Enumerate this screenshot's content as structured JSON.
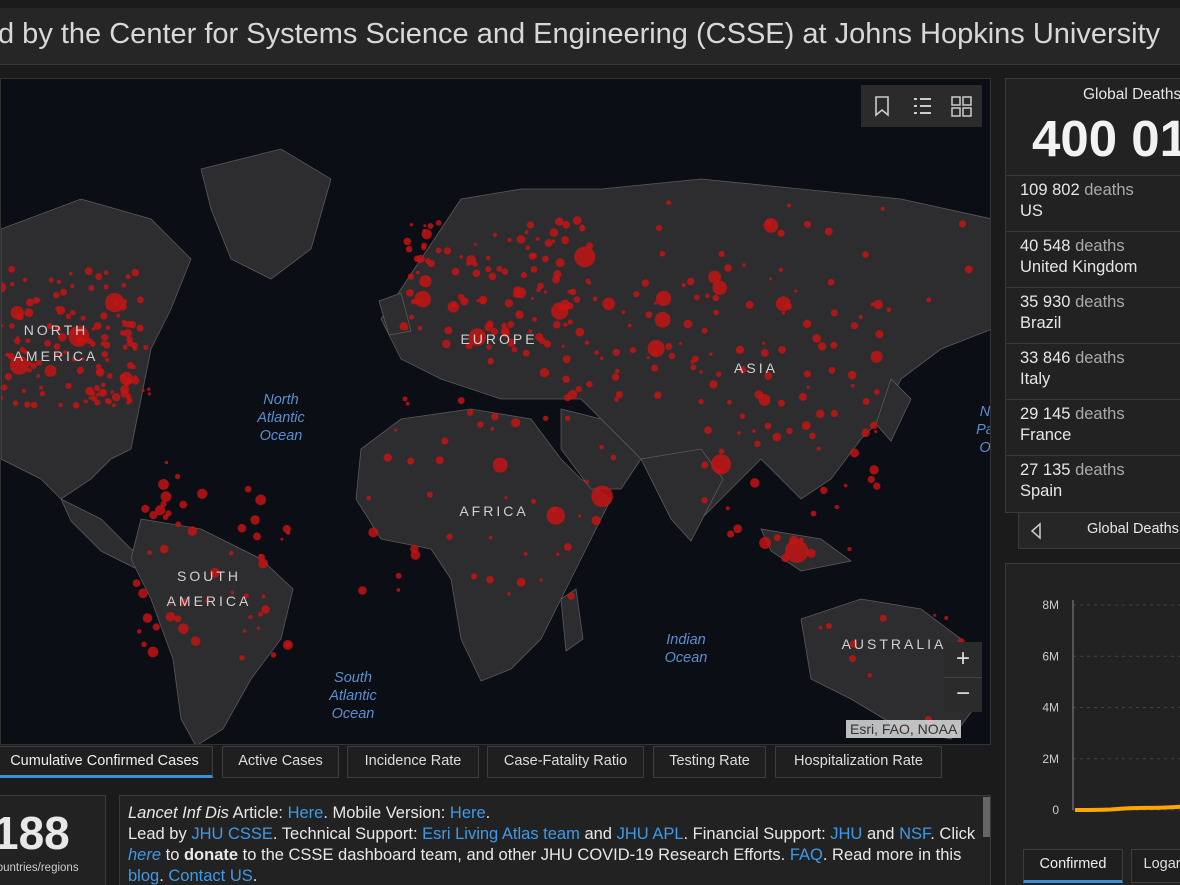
{
  "header": {
    "title": "d by the Center for Systems Science and Engineering (CSSE) at Johns Hopkins University"
  },
  "map": {
    "continent_labels": [
      {
        "lines": [
          "NORTH",
          "AMERICA"
        ]
      },
      {
        "lines": [
          "EUROPE"
        ]
      },
      {
        "lines": [
          "ASIA"
        ]
      },
      {
        "lines": [
          "AFRICA"
        ]
      },
      {
        "lines": [
          "SOUTH",
          "AMERICA"
        ]
      },
      {
        "lines": [
          "AUSTRALIA"
        ]
      }
    ],
    "ocean_labels": [
      {
        "lines": [
          "North",
          "Atlantic",
          "Ocean"
        ]
      },
      {
        "lines": [
          "South",
          "Atlantic",
          "Ocean"
        ]
      },
      {
        "lines": [
          "Indian",
          "Ocean"
        ]
      },
      {
        "lines": [
          "N",
          "Pa",
          "O"
        ]
      }
    ],
    "zoom": {
      "in": "+",
      "out": "−"
    },
    "attribution": "Esri, FAO, NOAA"
  },
  "map_tabs": [
    "Cumulative Confirmed Cases",
    "Active Cases",
    "Incidence Rate",
    "Case-Fatality Ratio",
    "Testing Rate",
    "Hospitalization Rate"
  ],
  "count": {
    "value": "188",
    "label": "countries/regions"
  },
  "info": {
    "paragraphs": [
      [
        {
          "text": "Lancet Inf Dis",
          "style": "italic"
        },
        {
          "text": " Article: ",
          "style": "plain"
        },
        {
          "text": "Here",
          "style": "link"
        },
        {
          "text": ". Mobile Version: ",
          "style": "plain"
        },
        {
          "text": "Here",
          "style": "link"
        },
        {
          "text": ".",
          "style": "plain"
        }
      ],
      [
        {
          "text": "Lead by ",
          "style": "plain"
        },
        {
          "text": "JHU CSSE",
          "style": "link"
        },
        {
          "text": ". Technical Support: ",
          "style": "plain"
        },
        {
          "text": "Esri Living Atlas team",
          "style": "link"
        },
        {
          "text": " and ",
          "style": "plain"
        },
        {
          "text": "JHU APL",
          "style": "link"
        },
        {
          "text": ". Financial Support: ",
          "style": "plain"
        },
        {
          "text": "JHU",
          "style": "link"
        },
        {
          "text": " and ",
          "style": "plain"
        },
        {
          "text": "NSF",
          "style": "link"
        },
        {
          "text": ". Click ",
          "style": "plain"
        },
        {
          "text": "here",
          "style": "link-italic"
        },
        {
          "text": " to ",
          "style": "plain"
        },
        {
          "text": "donate",
          "style": "bold"
        },
        {
          "text": " to the CSSE dashboard team, and other JHU COVID-19 Research Efforts. ",
          "style": "plain"
        },
        {
          "text": "FAQ",
          "style": "link"
        },
        {
          "text": ". Read more in this ",
          "style": "plain"
        },
        {
          "text": "blog",
          "style": "link"
        },
        {
          "text": ". ",
          "style": "plain"
        },
        {
          "text": "Contact US",
          "style": "link"
        },
        {
          "text": ".",
          "style": "plain"
        }
      ]
    ]
  },
  "deaths_panel": {
    "title": "Global Deaths",
    "total": "400 01",
    "entries": [
      {
        "value": "109 802",
        "unit": "deaths",
        "country": "US"
      },
      {
        "value": "40 548",
        "unit": "deaths",
        "country": "United Kingdom"
      },
      {
        "value": "35 930",
        "unit": "deaths",
        "country": "Brazil"
      },
      {
        "value": "33 846",
        "unit": "deaths",
        "country": "Italy"
      },
      {
        "value": "29 145",
        "unit": "deaths",
        "country": "France"
      },
      {
        "value": "27 135",
        "unit": "deaths",
        "country": "Spain"
      }
    ],
    "footer": "Global Deaths"
  },
  "chart_data": {
    "type": "line",
    "ylim": [
      0,
      8000000
    ],
    "yticks": [
      0,
      {
        "value": 2000000,
        "label": "2M"
      },
      {
        "value": 4000000,
        "label": "4M"
      },
      {
        "value": 6000000,
        "label": "6M"
      },
      {
        "value": 8000000,
        "label": "8M"
      }
    ],
    "grid": true,
    "series": [
      {
        "name": "Confirmed",
        "color": "#ffa500",
        "values": [
          500,
          1000,
          2000,
          5000,
          10000,
          20000,
          40000,
          60000,
          75000,
          80000,
          82000,
          85000,
          90000,
          100000,
          110000,
          130000
        ]
      }
    ],
    "tabs": [
      "Confirmed",
      "Logarithmic"
    ]
  }
}
